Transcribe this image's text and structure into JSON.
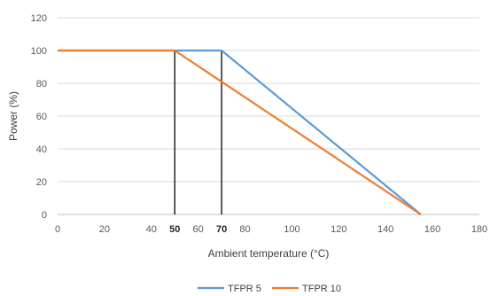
{
  "chart_data": {
    "type": "line",
    "xlabel": "Ambient temperature (°C)",
    "ylabel": "Power (%)",
    "xlim": [
      0,
      180
    ],
    "ylim": [
      0,
      120
    ],
    "x_ticks": [
      0,
      20,
      40,
      60,
      80,
      100,
      120,
      140,
      160,
      180
    ],
    "y_ticks": [
      0,
      20,
      40,
      60,
      80,
      100,
      120
    ],
    "extra_x_labels": [
      50,
      70
    ],
    "vertical_markers": [
      50,
      70
    ],
    "grid": "horizontal",
    "legend_position": "bottom",
    "series": [
      {
        "name": "TFPR 5",
        "color": "#5B9BD5",
        "x": [
          0,
          50,
          70,
          155
        ],
        "y": [
          100,
          100,
          100,
          0
        ]
      },
      {
        "name": "TFPR 10",
        "color": "#ED7D31",
        "x": [
          0,
          50,
          155
        ],
        "y": [
          100,
          100,
          0
        ]
      }
    ]
  }
}
